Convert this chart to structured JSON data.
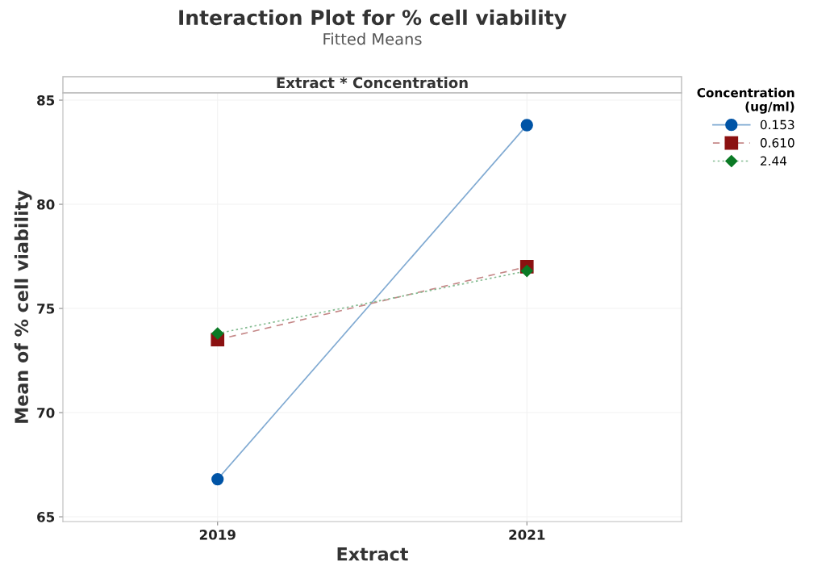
{
  "chart_data": {
    "type": "line",
    "title": "Interaction Plot for % cell viability",
    "subtitle": "Fitted Means",
    "xlabel": "Extract",
    "ylabel": "Mean of % cell viability",
    "legend_title": "Concentration\n(ug/ml)",
    "annotations": [
      "Extract * Concentration"
    ],
    "categories": [
      "2019",
      "2021"
    ],
    "series": [
      {
        "name": "0.153",
        "color": "#0054a6",
        "values": [
          66.8,
          83.8
        ],
        "marker": "circle",
        "line_style": "solid"
      },
      {
        "name": "0.610",
        "color": "#8b1111",
        "values": [
          73.5,
          77.0
        ],
        "marker": "square",
        "line_style": "dashed"
      },
      {
        "name": "2.44",
        "color": "#0b7a25",
        "values": [
          73.8,
          76.8
        ],
        "marker": "diamond",
        "line_style": "dotted"
      }
    ],
    "ylim": [
      64.77,
      85.35
    ],
    "yticks": [
      65,
      70,
      75,
      80,
      85
    ],
    "grid": true,
    "legend": "top right"
  }
}
